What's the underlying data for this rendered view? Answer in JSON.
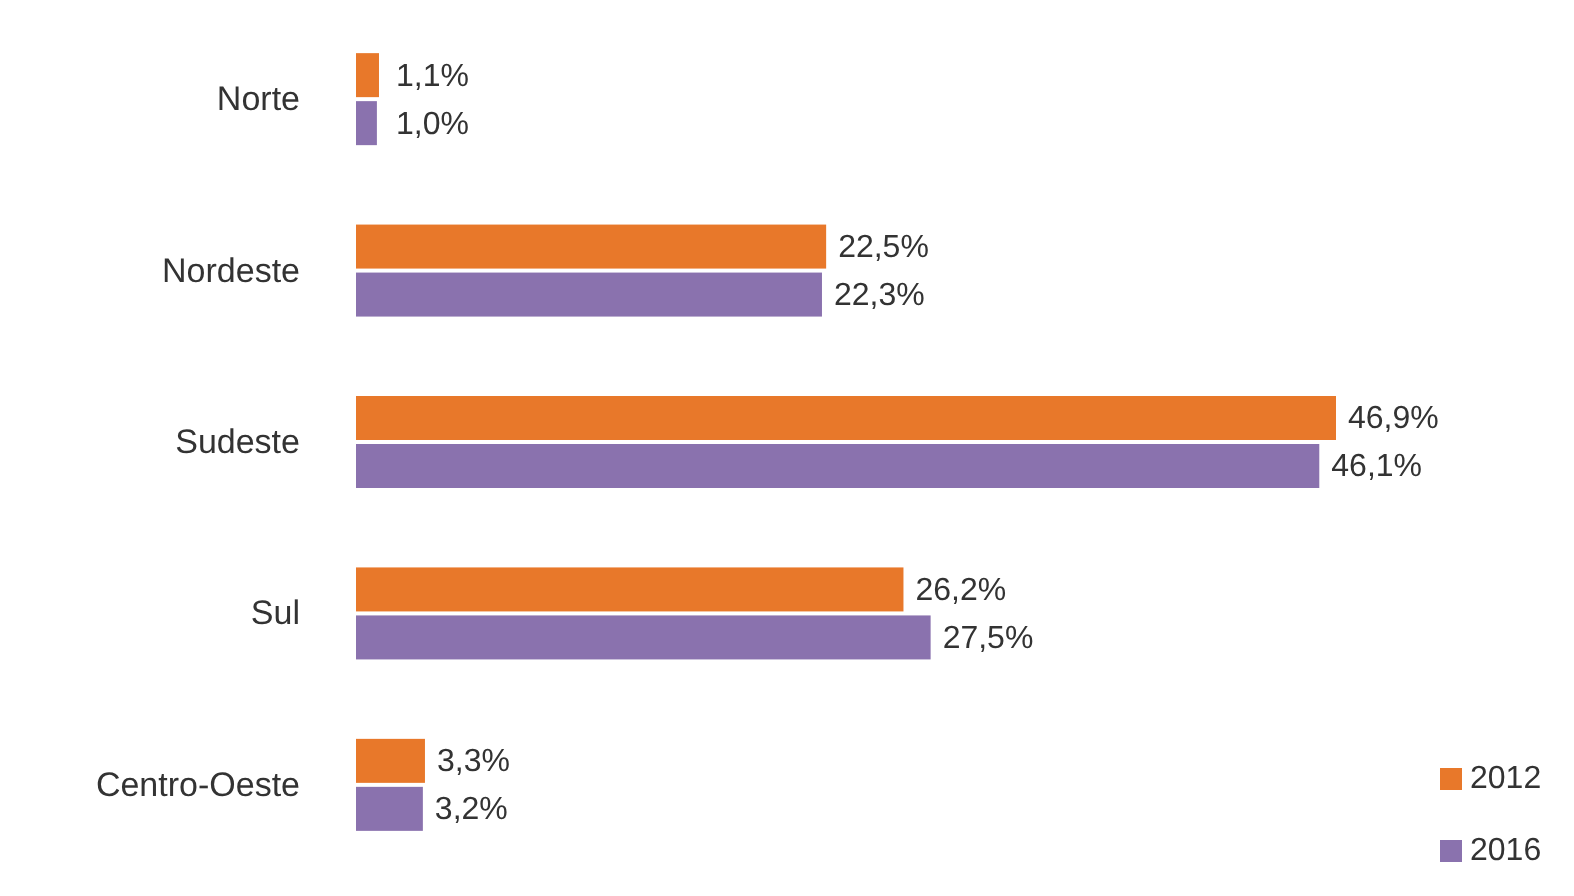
{
  "chart_data": {
    "type": "bar",
    "orientation": "horizontal",
    "categories": [
      "Norte",
      "Nordeste",
      "Sudeste",
      "Sul",
      "Centro-Oeste"
    ],
    "series": [
      {
        "name": "2012",
        "color": "#e8782a",
        "values": [
          1.1,
          22.5,
          46.9,
          26.2,
          3.3
        ],
        "value_labels": [
          "1,1%",
          "22,5%",
          "46,9%",
          "26,2%",
          "3,3%"
        ]
      },
      {
        "name": "2016",
        "color": "#8a72ae",
        "values": [
          1.0,
          22.3,
          46.1,
          27.5,
          3.2
        ],
        "value_labels": [
          "1,0%",
          "22,3%",
          "46,1%",
          "27,5%",
          "3,2%"
        ]
      }
    ],
    "legend": "bottom right"
  }
}
